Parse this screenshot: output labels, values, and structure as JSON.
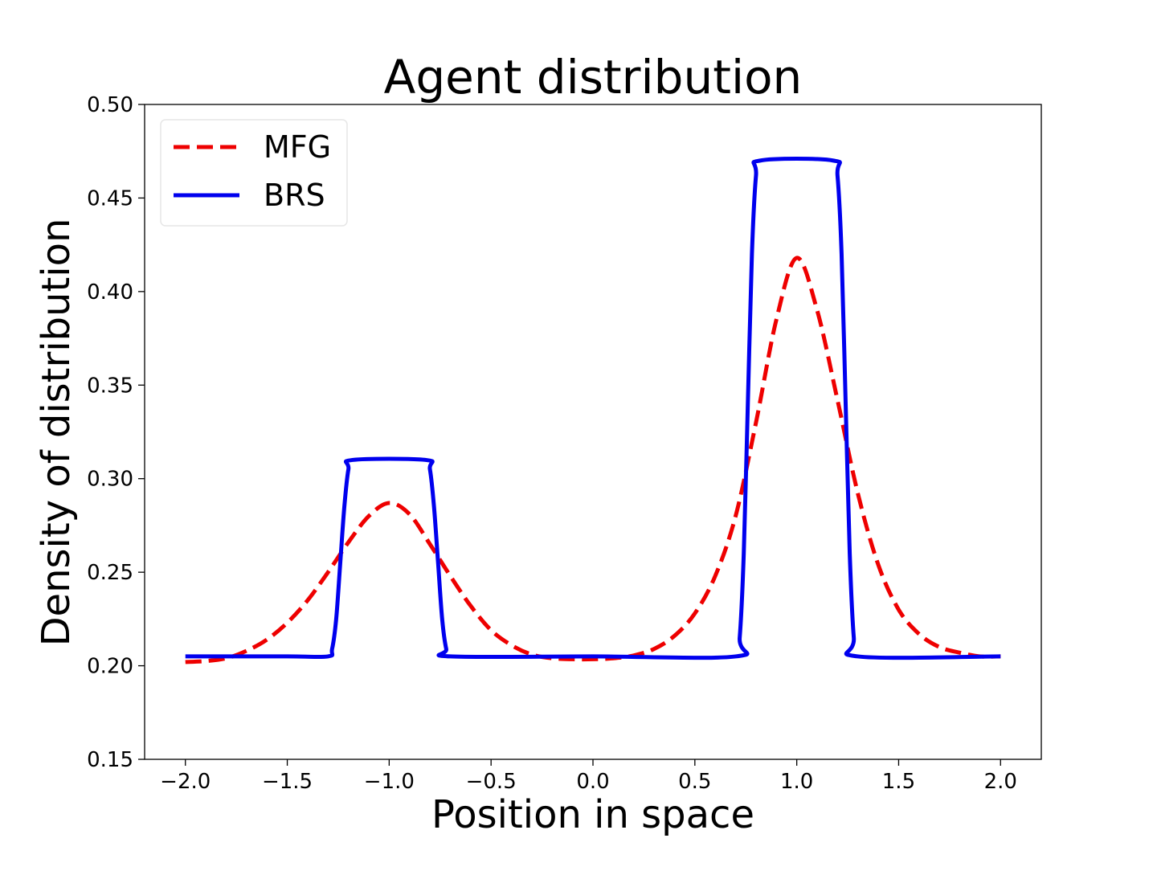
{
  "chart_data": {
    "type": "line",
    "title": "Agent distribution",
    "xlabel": "Position in space",
    "ylabel": "Density of distribution",
    "xlim": [
      -2.2,
      2.2
    ],
    "ylim": [
      0.15,
      0.5
    ],
    "x_ticks": [
      -2.0,
      -1.5,
      -1.0,
      -0.5,
      0.0,
      0.5,
      1.0,
      1.5,
      2.0
    ],
    "x_tick_labels": [
      "−2.0",
      "−1.5",
      "−1.0",
      "−0.5",
      "0.0",
      "0.5",
      "1.0",
      "1.5",
      "2.0"
    ],
    "y_ticks": [
      0.15,
      0.2,
      0.25,
      0.3,
      0.35,
      0.4,
      0.45,
      0.5
    ],
    "y_tick_labels": [
      "0.15",
      "0.20",
      "0.25",
      "0.30",
      "0.35",
      "0.40",
      "0.45",
      "0.50"
    ],
    "grid": false,
    "legend_position": "top-left",
    "series": [
      {
        "name": "MFG",
        "color": "#ee0000",
        "style": "dashed",
        "x": [
          -2.0,
          -1.9,
          -1.8,
          -1.7,
          -1.6,
          -1.5,
          -1.4,
          -1.3,
          -1.2,
          -1.1,
          -1.0,
          -0.9,
          -0.8,
          -0.7,
          -0.6,
          -0.5,
          -0.4,
          -0.3,
          -0.2,
          -0.1,
          0.0,
          0.1,
          0.2,
          0.3,
          0.4,
          0.5,
          0.6,
          0.7,
          0.8,
          0.9,
          1.0,
          1.1,
          1.2,
          1.3,
          1.4,
          1.5,
          1.6,
          1.7,
          1.8,
          1.9,
          2.0
        ],
        "y": [
          0.202,
          0.2025,
          0.204,
          0.208,
          0.214,
          0.223,
          0.235,
          0.25,
          0.266,
          0.28,
          0.287,
          0.281,
          0.265,
          0.248,
          0.232,
          0.219,
          0.211,
          0.206,
          0.204,
          0.2035,
          0.2035,
          0.204,
          0.2055,
          0.209,
          0.216,
          0.228,
          0.248,
          0.28,
          0.33,
          0.385,
          0.418,
          0.39,
          0.342,
          0.292,
          0.254,
          0.23,
          0.217,
          0.21,
          0.207,
          0.205,
          0.205
        ]
      },
      {
        "name": "BRS",
        "color": "#0000ee",
        "style": "solid",
        "x": [
          -2.0,
          -1.5,
          -1.3,
          -1.28,
          -1.26,
          -1.24,
          -1.22,
          -1.2,
          -1.18,
          -0.82,
          -0.8,
          -0.78,
          -0.76,
          -0.74,
          -0.72,
          -0.7,
          0.0,
          0.7,
          0.72,
          0.74,
          0.76,
          0.78,
          0.8,
          0.82,
          1.18,
          1.2,
          1.22,
          1.24,
          1.26,
          1.28,
          1.3,
          2.0
        ],
        "y": [
          0.205,
          0.205,
          0.205,
          0.209,
          0.225,
          0.255,
          0.285,
          0.305,
          0.31,
          0.31,
          0.305,
          0.285,
          0.255,
          0.225,
          0.209,
          0.205,
          0.205,
          0.205,
          0.215,
          0.26,
          0.34,
          0.42,
          0.462,
          0.47,
          0.47,
          0.462,
          0.42,
          0.34,
          0.26,
          0.215,
          0.205,
          0.205
        ]
      }
    ]
  }
}
